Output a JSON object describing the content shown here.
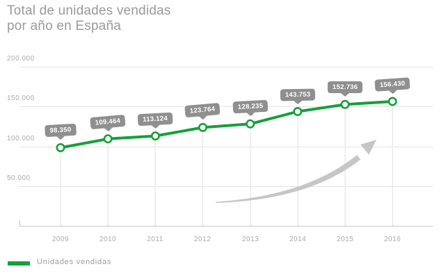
{
  "title": {
    "line1": "Total de unidades vendidas",
    "line2": "por año en España"
  },
  "legend": {
    "label": "Unidades vendidas"
  },
  "colors": {
    "series_green": "#14a03c",
    "callout_gray": "#8f8f8f",
    "title_gray": "#9a9a9a",
    "axis_text_gray": "#a8a8a8",
    "gridline_gray": "#e2e2e2",
    "arrow_gray": "#c6c6c6"
  },
  "chart_data": {
    "type": "line",
    "title": "Total de unidades vendidas por año en España",
    "categories": [
      "2009",
      "2010",
      "2011",
      "2012",
      "2013",
      "2014",
      "2015",
      "2016"
    ],
    "series": [
      {
        "name": "Unidades vendidas",
        "values": [
          98350,
          109464,
          113124,
          123764,
          128235,
          143753,
          152736,
          156430
        ]
      }
    ],
    "point_labels": [
      "98.350",
      "109.464",
      "113.124",
      "123.764",
      "128.235",
      "143.753",
      "152.736",
      "156.430"
    ],
    "y_tick_values": [
      50000,
      100000,
      150000,
      200000
    ],
    "y_tick_labels": [
      "50.000",
      "100.000",
      "150.000",
      "200.000"
    ],
    "ylim": [
      0,
      210000
    ],
    "xlabel": "",
    "ylabel": "",
    "grid": true,
    "legend_position": "bottom-left",
    "annotation": "upward-growth-arrow"
  }
}
